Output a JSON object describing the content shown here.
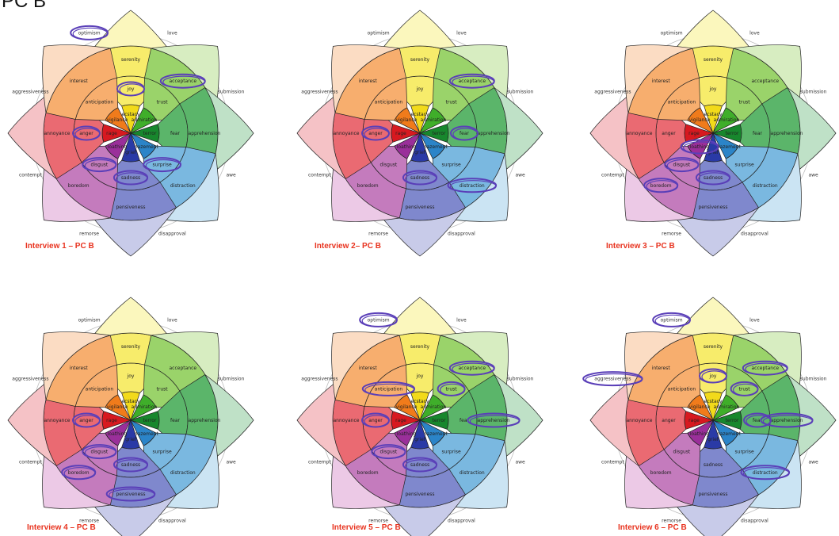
{
  "page": {
    "title": "PC B"
  },
  "wheel": {
    "petals": [
      {
        "key": "joy",
        "outer": "serenity",
        "mid": "joy",
        "inner": "ecstacy",
        "colors": [
          "#fbf7bd",
          "#f7ec6b",
          "#f2da1a"
        ]
      },
      {
        "key": "trust",
        "outer": "acceptance",
        "mid": "trust",
        "inner": "admiration",
        "colors": [
          "#d7edc1",
          "#9ad36a",
          "#3fae2a"
        ]
      },
      {
        "key": "fear",
        "outer": "apprehension",
        "mid": "fear",
        "inner": "terror",
        "colors": [
          "#bfe1c7",
          "#5bb56a",
          "#17872d"
        ]
      },
      {
        "key": "surprise",
        "outer": "distraction",
        "mid": "surprise",
        "inner": "amazement",
        "colors": [
          "#cbe4f3",
          "#7ab8e0",
          "#2b84c8"
        ]
      },
      {
        "key": "sadness",
        "outer": "pensiveness",
        "mid": "sadness",
        "inner": "grief",
        "colors": [
          "#c8cbe9",
          "#7f88cd",
          "#2a3aa6"
        ]
      },
      {
        "key": "disgust",
        "outer": "boredom",
        "mid": "disgust",
        "inner": "loathing",
        "colors": [
          "#ecc9e6",
          "#c47bbd",
          "#9a2f9a"
        ]
      },
      {
        "key": "anger",
        "outer": "annoyance",
        "mid": "anger",
        "inner": "rage",
        "colors": [
          "#f5c2c6",
          "#ea6a72",
          "#d71920"
        ]
      },
      {
        "key": "anticipation",
        "outer": "interest",
        "mid": "anticipation",
        "inner": "vigilance",
        "colors": [
          "#fbdcc3",
          "#f7ae6e",
          "#f07b1b"
        ]
      }
    ],
    "dyads": [
      "love",
      "submission",
      "awe",
      "disapproval",
      "remorse",
      "contempt",
      "aggressiveness",
      "optimism"
    ],
    "highlight_color": "#5a3fb8"
  },
  "interviews": [
    {
      "caption": "Interview 1 – PC B",
      "circled": [
        "optimism",
        "joy",
        "acceptance",
        "anger",
        "disgust",
        "surprise",
        "sadness"
      ]
    },
    {
      "caption": "Interview 2– PC B",
      "circled": [
        "acceptance",
        "anger",
        "fear",
        "sadness",
        "distraction"
      ]
    },
    {
      "caption": "Interview 3 – PC B",
      "circled": [
        "loathing",
        "disgust",
        "boredom",
        "sadness"
      ]
    },
    {
      "caption": "Interview 4 – PC B",
      "circled": [
        "anger",
        "disgust",
        "boredom",
        "sadness",
        "pensiveness"
      ]
    },
    {
      "caption": "Interview 5 – PC B",
      "circled": [
        "optimism",
        "acceptance",
        "trust",
        "anticipation",
        "anger",
        "apprehension",
        "disgust",
        "sadness"
      ]
    },
    {
      "caption": "Interview 6 – PC B",
      "circled": [
        "optimism",
        "aggressiveness",
        "joy",
        "acceptance",
        "trust",
        "fear",
        "apprehension",
        "distraction"
      ]
    }
  ]
}
